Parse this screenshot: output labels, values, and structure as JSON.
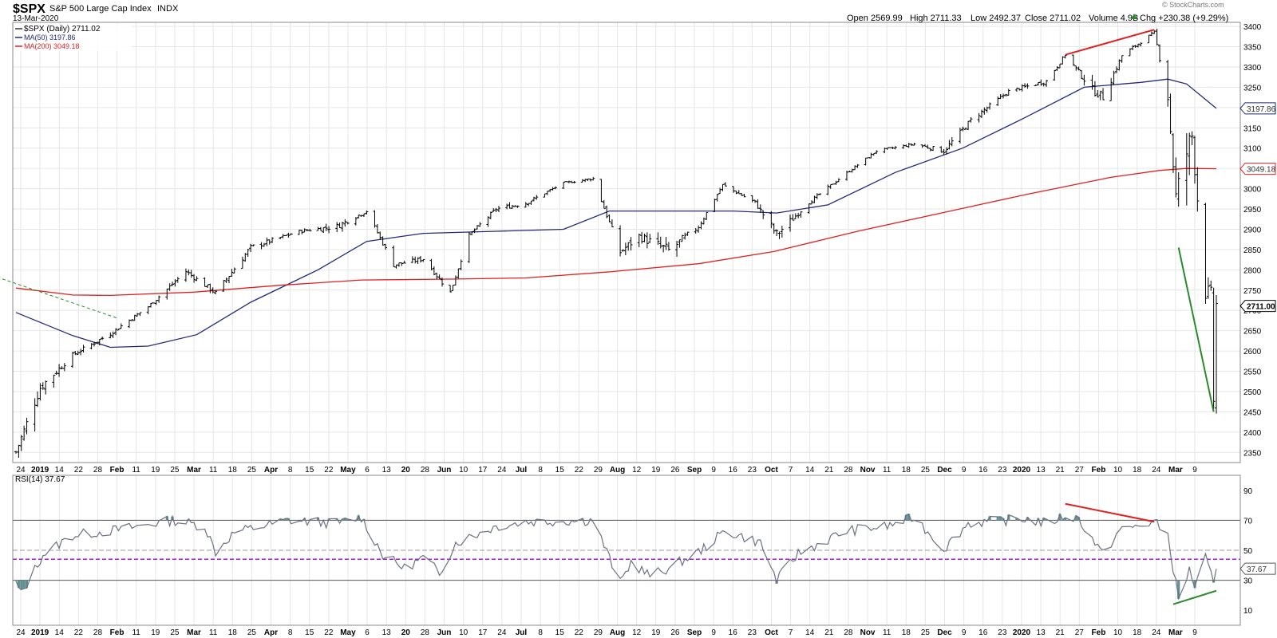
{
  "header": {
    "symbol": "$SPX",
    "name": "S&P 500 Large Cap Index",
    "exchange": "INDX",
    "date": "13-Mar-2020",
    "open": "Open 2569.99",
    "high": "High 2711.33",
    "low": "Low 2492.37",
    "close": "Close 2711.02",
    "volume": "Volume 4.9B",
    "change": "Chg +230.38 (+9.29%)",
    "change_icon": "up-triangle-icon",
    "watermark": "© StockCharts.com"
  },
  "legend": {
    "price": "$SPX (Daily) 2711.02",
    "ma50": "MA(50) 3197.86",
    "ma200": "MA(200) 3049.18",
    "rsi": "RSI(14) 37.67"
  },
  "colors": {
    "price": "#000000",
    "ma50": "#1f2a78",
    "ma200": "#e02020",
    "rsi_line": "#6b7085",
    "rsi_fill": "#5f8f8f",
    "rsi_midline": "#9b1fd6",
    "trendline_red": "#e02020",
    "trendline_green": "#2b8a2b",
    "trendline_dashed": "#2b8a2b",
    "grid": "#e6e6e6"
  },
  "chart_data": [
    {
      "type": "ohlc",
      "title": "$SPX S&P 500 Large Cap Index INDX",
      "y_ticks": [
        2350,
        2400,
        2450,
        2500,
        2550,
        2600,
        2650,
        2700,
        2750,
        2800,
        2850,
        2900,
        2950,
        3000,
        3050,
        3100,
        3150,
        3200,
        3250,
        3300,
        3350,
        3400
      ],
      "ylim": [
        2325,
        3410
      ],
      "x_labels": [
        "24",
        "2019",
        "14",
        "22",
        "28",
        "Feb",
        "11",
        "19",
        "25",
        "Mar",
        "11",
        "18",
        "25",
        "Apr",
        "8",
        "15",
        "22",
        "May",
        "6",
        "13",
        "20",
        "28",
        "Jun",
        "10",
        "17",
        "24",
        "Jul",
        "8",
        "15",
        "22",
        "29",
        "Aug",
        "12",
        "19",
        "26",
        "Sep",
        "9",
        "16",
        "23",
        "Oct",
        "7",
        "14",
        "21",
        "28",
        "Nov",
        "11",
        "18",
        "25",
        "Dec",
        "9",
        "16",
        "23",
        "2020",
        "13",
        "21",
        "27",
        "Feb",
        "10",
        "18",
        "24",
        "Mar",
        "9"
      ],
      "series_close": {
        "name": "$SPX",
        "dates": [
          "2018-12-24",
          "2019-01-02",
          "2019-01-14",
          "2019-01-28",
          "2019-02-11",
          "2019-02-25",
          "2019-03-08",
          "2019-03-21",
          "2019-04-08",
          "2019-04-22",
          "2019-05-03",
          "2019-05-13",
          "2019-05-24",
          "2019-06-03",
          "2019-06-10",
          "2019-06-20",
          "2019-07-01",
          "2019-07-15",
          "2019-07-26",
          "2019-08-05",
          "2019-08-12",
          "2019-08-23",
          "2019-09-03",
          "2019-09-12",
          "2019-09-24",
          "2019-10-02",
          "2019-10-14",
          "2019-10-28",
          "2019-11-08",
          "2019-11-22",
          "2019-12-03",
          "2019-12-13",
          "2019-12-27",
          "2020-01-10",
          "2020-01-17",
          "2020-01-27",
          "2020-01-31",
          "2020-02-07",
          "2020-02-19",
          "2020-02-24",
          "2020-02-27",
          "2020-03-02",
          "2020-03-04",
          "2020-03-09",
          "2020-03-11",
          "2020-03-12",
          "2020-03-13"
        ],
        "close": [
          2351,
          2510,
          2590,
          2643,
          2709,
          2796,
          2743,
          2855,
          2895,
          2907,
          2945,
          2812,
          2827,
          2744,
          2886,
          2950,
          2964,
          3014,
          3025,
          2844,
          2883,
          2847,
          2906,
          3009,
          2966,
          2887,
          2966,
          3039,
          3093,
          3110,
          3093,
          3169,
          3240,
          3265,
          3330,
          3244,
          3226,
          3328,
          3386,
          3226,
          2979,
          3090,
          3130,
          2746,
          2741,
          2481,
          2711
        ],
        "high": [
          2410,
          2520,
          2600,
          2650,
          2712,
          2813,
          2760,
          2860,
          2900,
          2936,
          2955,
          2830,
          2840,
          2760,
          2890,
          2958,
          2977,
          3018,
          3028,
          2880,
          2898,
          2930,
          2920,
          3020,
          2990,
          2925,
          2972,
          3046,
          3095,
          3115,
          3110,
          3183,
          3248,
          3282,
          3330,
          3270,
          3285,
          3338,
          3393,
          3259,
          3098,
          3105,
          3131,
          2863,
          2796,
          2660,
          2711
        ],
        "low": [
          2347,
          2444,
          2570,
          2620,
          2690,
          2780,
          2725,
          2820,
          2880,
          2895,
          2930,
          2800,
          2810,
          2730,
          2870,
          2930,
          2950,
          3005,
          3010,
          2822,
          2840,
          2840,
          2890,
          3000,
          2960,
          2855,
          2950,
          3030,
          3080,
          3100,
          3070,
          3150,
          3225,
          3250,
          3310,
          3214,
          3224,
          3310,
          3378,
          3182,
          2950,
          2855,
          3000,
          2734,
          2700,
          2478,
          2492
        ]
      },
      "moving_averages": [
        {
          "name": "MA(50)",
          "last": 3197.86,
          "x": [
            "2018-12-24",
            "2019-01-14",
            "2019-01-28",
            "2019-02-11",
            "2019-03-01",
            "2019-03-21",
            "2019-04-15",
            "2019-05-03",
            "2019-05-24",
            "2019-06-20",
            "2019-07-15",
            "2019-08-01",
            "2019-08-23",
            "2019-09-16",
            "2019-10-02",
            "2019-10-21",
            "2019-11-15",
            "2019-12-10",
            "2020-01-02",
            "2020-01-24",
            "2020-02-14",
            "2020-02-24",
            "2020-03-02",
            "2020-03-13"
          ],
          "y": [
            2695,
            2638,
            2609,
            2612,
            2640,
            2720,
            2800,
            2870,
            2890,
            2895,
            2900,
            2945,
            2945,
            2945,
            2940,
            2960,
            3040,
            3100,
            3175,
            3250,
            3262,
            3270,
            3258,
            3197.86
          ]
        },
        {
          "name": "MA(200)",
          "last": 3049.18,
          "x": [
            "2018-12-24",
            "2019-01-14",
            "2019-01-28",
            "2019-02-28",
            "2019-04-01",
            "2019-05-01",
            "2019-06-03",
            "2019-07-01",
            "2019-08-01",
            "2019-09-03",
            "2019-10-01",
            "2019-11-01",
            "2019-12-02",
            "2020-01-02",
            "2020-02-03",
            "2020-02-21",
            "2020-03-02",
            "2020-03-13"
          ],
          "y": [
            2755,
            2738,
            2737,
            2745,
            2762,
            2775,
            2777,
            2780,
            2795,
            2815,
            2845,
            2895,
            2940,
            2985,
            3028,
            3045,
            3050,
            3049.18
          ]
        }
      ],
      "annotations": [
        {
          "name": "resistance-line",
          "x": [
            "2020-01-17",
            "2020-02-19"
          ],
          "y": [
            3330,
            3392
          ]
        },
        {
          "name": "selloff-trendline",
          "x": [
            "2020-02-28",
            "2020-03-12"
          ],
          "y": [
            2855,
            2450
          ]
        },
        {
          "name": "early-dashed-trendline",
          "x": [
            "2018-12-17",
            "2019-01-31"
          ],
          "y": [
            2782,
            2680
          ]
        }
      ]
    },
    {
      "type": "line",
      "title": "RSI(14) 37.67",
      "y_ticks": [
        10,
        30,
        50,
        70,
        90
      ],
      "reference_lines": [
        70,
        50,
        30
      ],
      "midline": 44,
      "ylim": [
        0,
        100
      ],
      "last": 37.67,
      "x": [
        "2018-12-24",
        "2018-12-26",
        "2019-01-03",
        "2019-01-14",
        "2019-02-01",
        "2019-02-20",
        "2019-03-04",
        "2019-03-08",
        "2019-03-15",
        "2019-04-04",
        "2019-04-22",
        "2019-05-01",
        "2019-05-09",
        "2019-05-17",
        "2019-05-24",
        "2019-05-30",
        "2019-06-05",
        "2019-06-20",
        "2019-07-01",
        "2019-07-26",
        "2019-08-05",
        "2019-08-09",
        "2019-08-16",
        "2019-08-23",
        "2019-09-04",
        "2019-09-13",
        "2019-09-26",
        "2019-10-02",
        "2019-10-10",
        "2019-10-28",
        "2019-11-12",
        "2019-11-22",
        "2019-12-03",
        "2019-12-12",
        "2020-01-02",
        "2020-01-10",
        "2020-01-17",
        "2020-01-22",
        "2020-01-31",
        "2020-02-06",
        "2020-02-19",
        "2020-02-24",
        "2020-02-28",
        "2020-03-03",
        "2020-03-05",
        "2020-03-09",
        "2020-03-10",
        "2020-03-12",
        "2020-03-13"
      ],
      "y": [
        28,
        21,
        47,
        60,
        64,
        70,
        66,
        49,
        62,
        70,
        68,
        72,
        47,
        38,
        45,
        35,
        55,
        66,
        69,
        70,
        28,
        42,
        33,
        38,
        50,
        63,
        55,
        30,
        48,
        63,
        66,
        72,
        51,
        68,
        71,
        68,
        73,
        71,
        47,
        63,
        69,
        60,
        17,
        37,
        26,
        45,
        39,
        27,
        37.67
      ],
      "annotations": [
        {
          "name": "rsi-bearish-divergence-line",
          "x": [
            "2020-01-17",
            "2020-02-19"
          ],
          "y": [
            81,
            69
          ]
        },
        {
          "name": "rsi-bullish-divergence-line",
          "x": [
            "2020-02-26",
            "2020-03-13"
          ],
          "y": [
            14,
            23
          ]
        }
      ]
    }
  ]
}
